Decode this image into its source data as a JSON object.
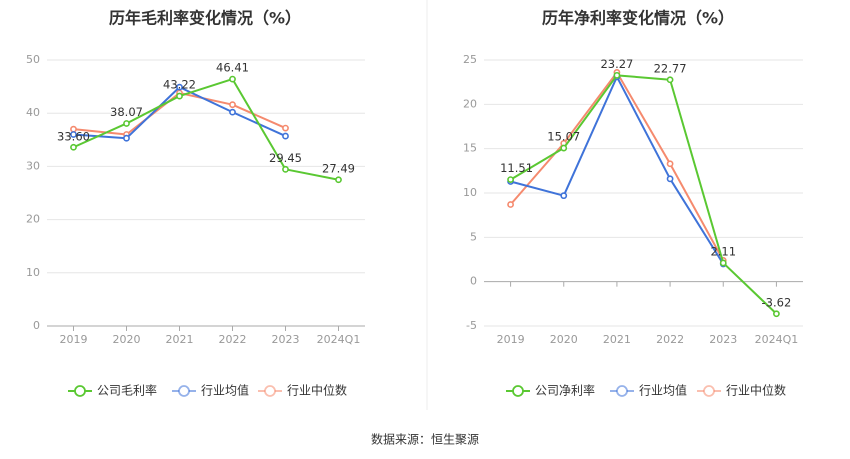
{
  "colors": {
    "company": "#5ac832",
    "industry_avg": "#3f73d9",
    "industry_median": "#f58a6e"
  },
  "source": "数据来源：恒生聚源",
  "chart_data": [
    {
      "type": "line",
      "title": "历年毛利率变化情况（%）",
      "categories": [
        "2019",
        "2020",
        "2021",
        "2022",
        "2023",
        "2024Q1"
      ],
      "ylim": [
        0,
        50
      ],
      "yticks": [
        0,
        10,
        20,
        30,
        40,
        50
      ],
      "grid": true,
      "legend_position": "bottom",
      "series": [
        {
          "name": "公司毛利率",
          "values": [
            33.6,
            38.07,
            43.22,
            46.41,
            29.45,
            27.49
          ],
          "labels": [
            "33.60",
            "38.07",
            "43.22",
            "46.41",
            "29.45",
            "27.49"
          ]
        },
        {
          "name": "行业均值",
          "values": [
            36.0,
            35.3,
            44.9,
            40.2,
            35.7,
            null
          ]
        },
        {
          "name": "行业中位数",
          "values": [
            37.0,
            36.0,
            43.8,
            41.6,
            37.2,
            null
          ]
        }
      ]
    },
    {
      "type": "line",
      "title": "历年净利率变化情况（%）",
      "categories": [
        "2019",
        "2020",
        "2021",
        "2022",
        "2023",
        "2024Q1"
      ],
      "ylim": [
        -5,
        25
      ],
      "yticks": [
        -5,
        0,
        5,
        10,
        15,
        20,
        25
      ],
      "grid": true,
      "legend_position": "bottom",
      "series": [
        {
          "name": "公司净利率",
          "values": [
            11.51,
            15.07,
            23.27,
            22.77,
            2.11,
            -3.62
          ],
          "labels": [
            "11.51",
            "15.07",
            "23.27",
            "22.77",
            "2.11",
            "-3.62"
          ]
        },
        {
          "name": "行业均值",
          "values": [
            11.3,
            9.7,
            23.1,
            11.6,
            2.0,
            null
          ]
        },
        {
          "name": "行业中位数",
          "values": [
            8.7,
            15.6,
            23.6,
            13.3,
            2.4,
            null
          ]
        }
      ]
    }
  ]
}
